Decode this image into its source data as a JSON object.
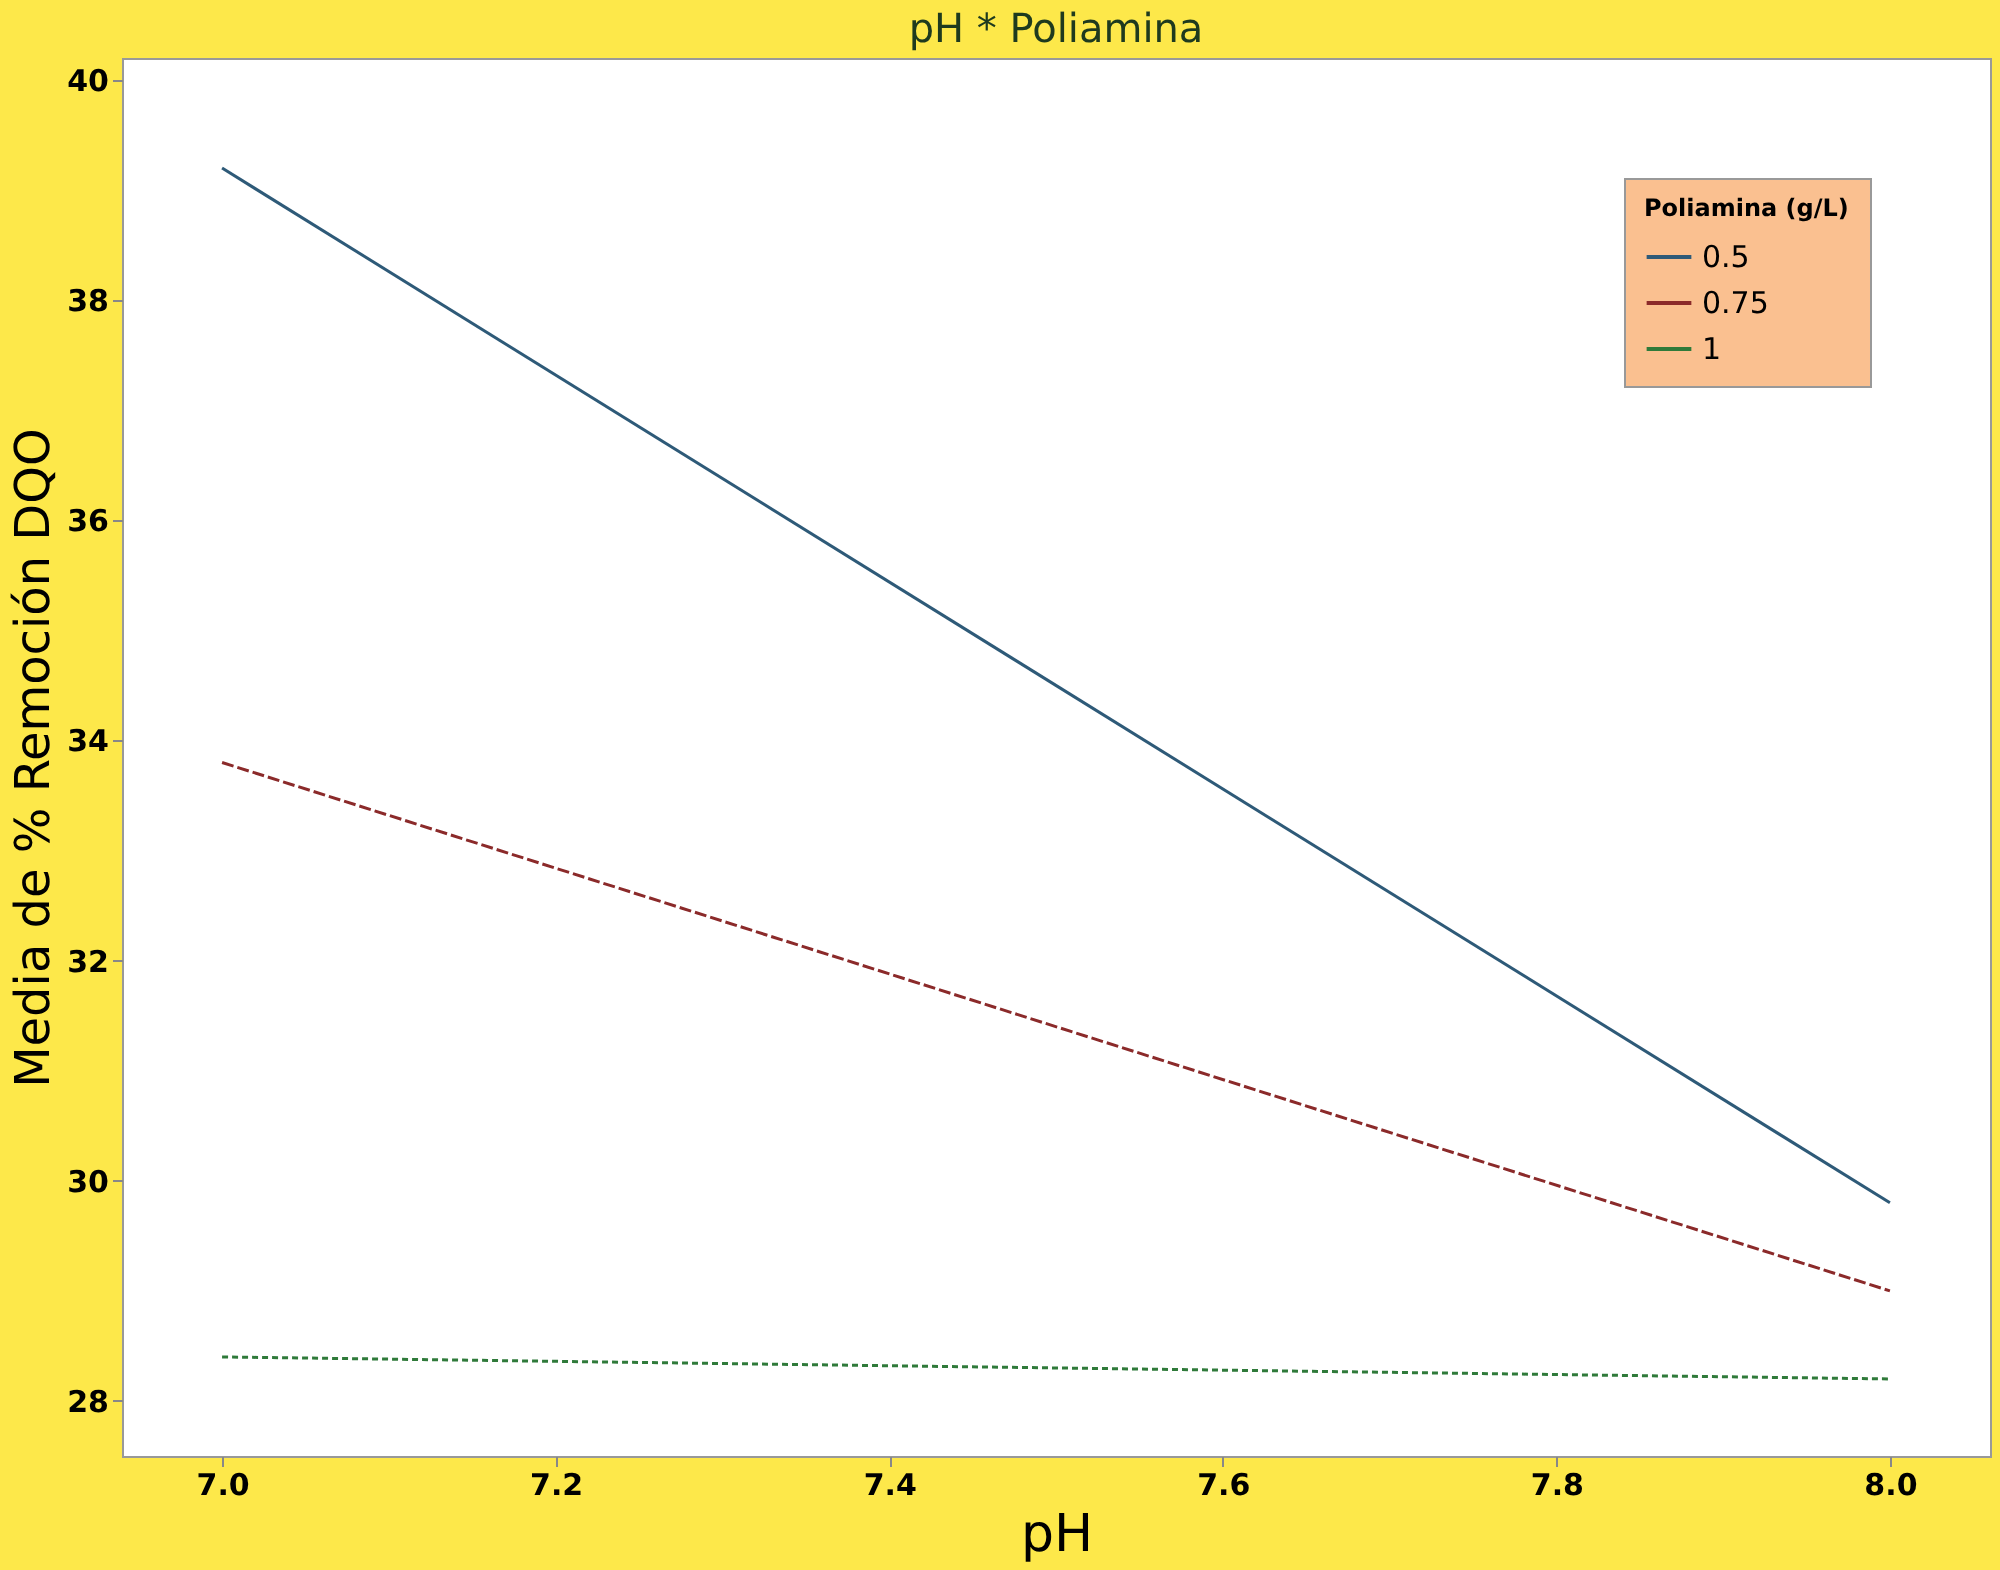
{
  "chart_data": {
    "type": "line",
    "title": "pH * Poliamina",
    "xlabel": "pH",
    "ylabel": "Media de % Remoción DQO",
    "legend_title": "Poliamina (g/L)",
    "legend": "top right",
    "grid": false,
    "marker": "none",
    "x": [
      7.0,
      8.0
    ],
    "series": [
      {
        "name": "0.5",
        "color": "#2e5a78",
        "values": [
          39.2,
          29.8
        ],
        "line_style": "solid"
      },
      {
        "name": "0.75",
        "color": "#8b2a2a",
        "values": [
          33.8,
          29.0
        ],
        "line_style": "dashed"
      },
      {
        "name": "1",
        "color": "#2f7a3a",
        "values": [
          28.4,
          28.2
        ],
        "line_style": "dotted"
      }
    ],
    "xlim": [
      6.94,
      8.06
    ],
    "ylim": [
      27.5,
      40.2
    ],
    "xticks": [
      {
        "value": 7.0,
        "label": "7.0"
      },
      {
        "value": 7.2,
        "label": "7.2"
      },
      {
        "value": 7.4,
        "label": "7.4"
      },
      {
        "value": 7.6,
        "label": "7.6"
      },
      {
        "value": 7.8,
        "label": "7.8"
      },
      {
        "value": 8.0,
        "label": "8.0"
      }
    ],
    "yticks": [
      28,
      30,
      32,
      34,
      36,
      38,
      40
    ]
  }
}
